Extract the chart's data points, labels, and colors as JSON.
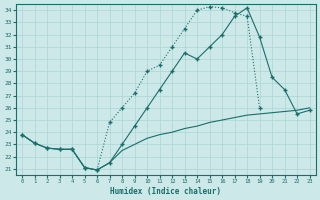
{
  "xlabel": "Humidex (Indice chaleur)",
  "bg_color": "#cce8e8",
  "line_color": "#1a6e6a",
  "grid_color": "#aad4d4",
  "xlim": [
    -0.5,
    23.5
  ],
  "ylim": [
    20.5,
    34.5
  ],
  "yticks": [
    21,
    22,
    23,
    24,
    25,
    26,
    27,
    28,
    29,
    30,
    31,
    32,
    33,
    34
  ],
  "xticks": [
    0,
    1,
    2,
    3,
    4,
    5,
    6,
    7,
    8,
    9,
    10,
    11,
    12,
    13,
    14,
    15,
    16,
    17,
    18,
    19,
    20,
    21,
    22,
    23
  ],
  "line1_x": [
    0,
    1,
    2,
    3,
    4,
    5,
    6,
    7,
    8,
    9,
    10,
    11,
    12,
    13,
    14,
    15,
    16,
    17,
    18,
    19,
    20,
    21,
    22,
    23
  ],
  "line1_y": [
    23.8,
    23.1,
    22.7,
    22.6,
    22.6,
    21.1,
    20.9,
    24.8,
    26.0,
    27.2,
    29.0,
    29.5,
    31.0,
    32.5,
    34.0,
    34.3,
    34.2,
    33.8,
    33.5,
    26.0,
    null,
    null,
    null,
    null
  ],
  "line2_x": [
    0,
    1,
    2,
    3,
    4,
    5,
    6,
    7,
    8,
    9,
    10,
    11,
    12,
    13,
    14,
    15,
    16,
    17,
    18,
    19,
    20,
    21,
    22,
    23
  ],
  "line2_y": [
    23.8,
    23.1,
    22.7,
    22.6,
    22.6,
    21.1,
    20.9,
    21.5,
    23.0,
    24.5,
    26.0,
    27.5,
    29.0,
    30.5,
    30.0,
    31.0,
    32.0,
    33.5,
    34.2,
    31.8,
    28.5,
    27.5,
    25.5,
    25.8
  ],
  "line3_x": [
    0,
    1,
    2,
    3,
    4,
    5,
    6,
    7,
    8,
    9,
    10,
    11,
    12,
    13,
    14,
    15,
    16,
    17,
    18,
    19,
    20,
    21,
    22,
    23
  ],
  "line3_y": [
    23.8,
    23.1,
    22.7,
    22.6,
    22.6,
    21.1,
    20.9,
    21.5,
    22.5,
    23.0,
    23.5,
    23.8,
    24.0,
    24.3,
    24.5,
    24.8,
    25.0,
    25.2,
    25.4,
    25.5,
    25.6,
    25.7,
    25.8,
    26.0
  ]
}
